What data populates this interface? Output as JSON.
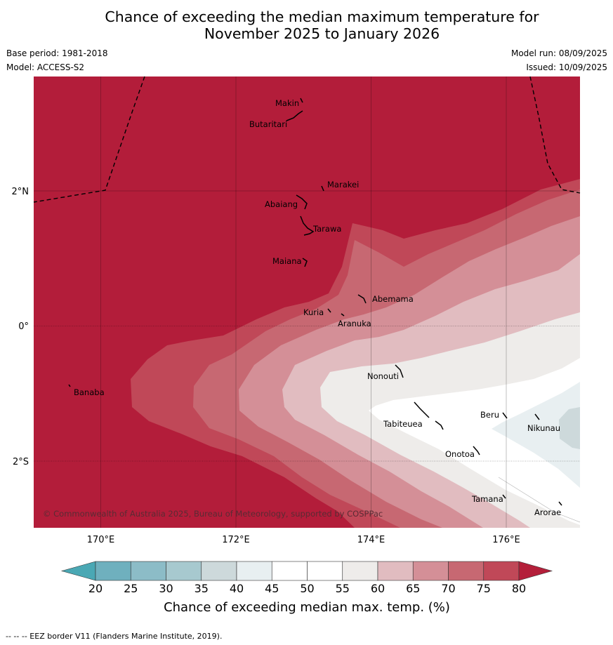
{
  "title_line1": "Chance of exceeding the median maximum temperature for",
  "title_line2": "November 2025 to January 2026",
  "base_period": "Base period: 1981-2018",
  "model": "Model: ACCESS-S2",
  "model_run": "Model run: 08/09/2025",
  "issued": "Issued: 10/09/2025",
  "copyright": "© Commonwealth of Australia 2025, Bureau of Meteorology, supported by COSPPac",
  "lon_labels": [
    "170°E",
    "172°E",
    "174°E",
    "176°E"
  ],
  "lat_labels": [
    "2°N",
    "0°",
    "2°S"
  ],
  "places": [
    {
      "name": "Makin"
    },
    {
      "name": "Butaritari"
    },
    {
      "name": "Marakei"
    },
    {
      "name": "Abaiang"
    },
    {
      "name": "Tarawa"
    },
    {
      "name": "Maiana"
    },
    {
      "name": "Abemama"
    },
    {
      "name": "Kuria"
    },
    {
      "name": "Aranuka"
    },
    {
      "name": "Banaba"
    },
    {
      "name": "Nonouti"
    },
    {
      "name": "Tabiteuea"
    },
    {
      "name": "Beru"
    },
    {
      "name": "Nikunau"
    },
    {
      "name": "Onotoa"
    },
    {
      "name": "Tamana"
    },
    {
      "name": "Arorae"
    }
  ],
  "colorbar": {
    "ticks": [
      "20",
      "25",
      "30",
      "35",
      "40",
      "45",
      "50",
      "55",
      "60",
      "65",
      "70",
      "75",
      "80"
    ],
    "colors": [
      "#6fb0be",
      "#8cbcc7",
      "#a7c9cf",
      "#cdd9db",
      "#e8eff1",
      "#ffffff",
      "#ffffff",
      "#eeecea",
      "#e1bcc0",
      "#d48f97",
      "#c76872",
      "#c04858"
    ],
    "under_color": "#4aa8b4",
    "over_color": "#b41f3a",
    "title": "Chance of exceeding median max. temp. (%)"
  },
  "footer": "--  --  -- EEZ border V11 (Flanders Marine Institute, 2019)."
}
